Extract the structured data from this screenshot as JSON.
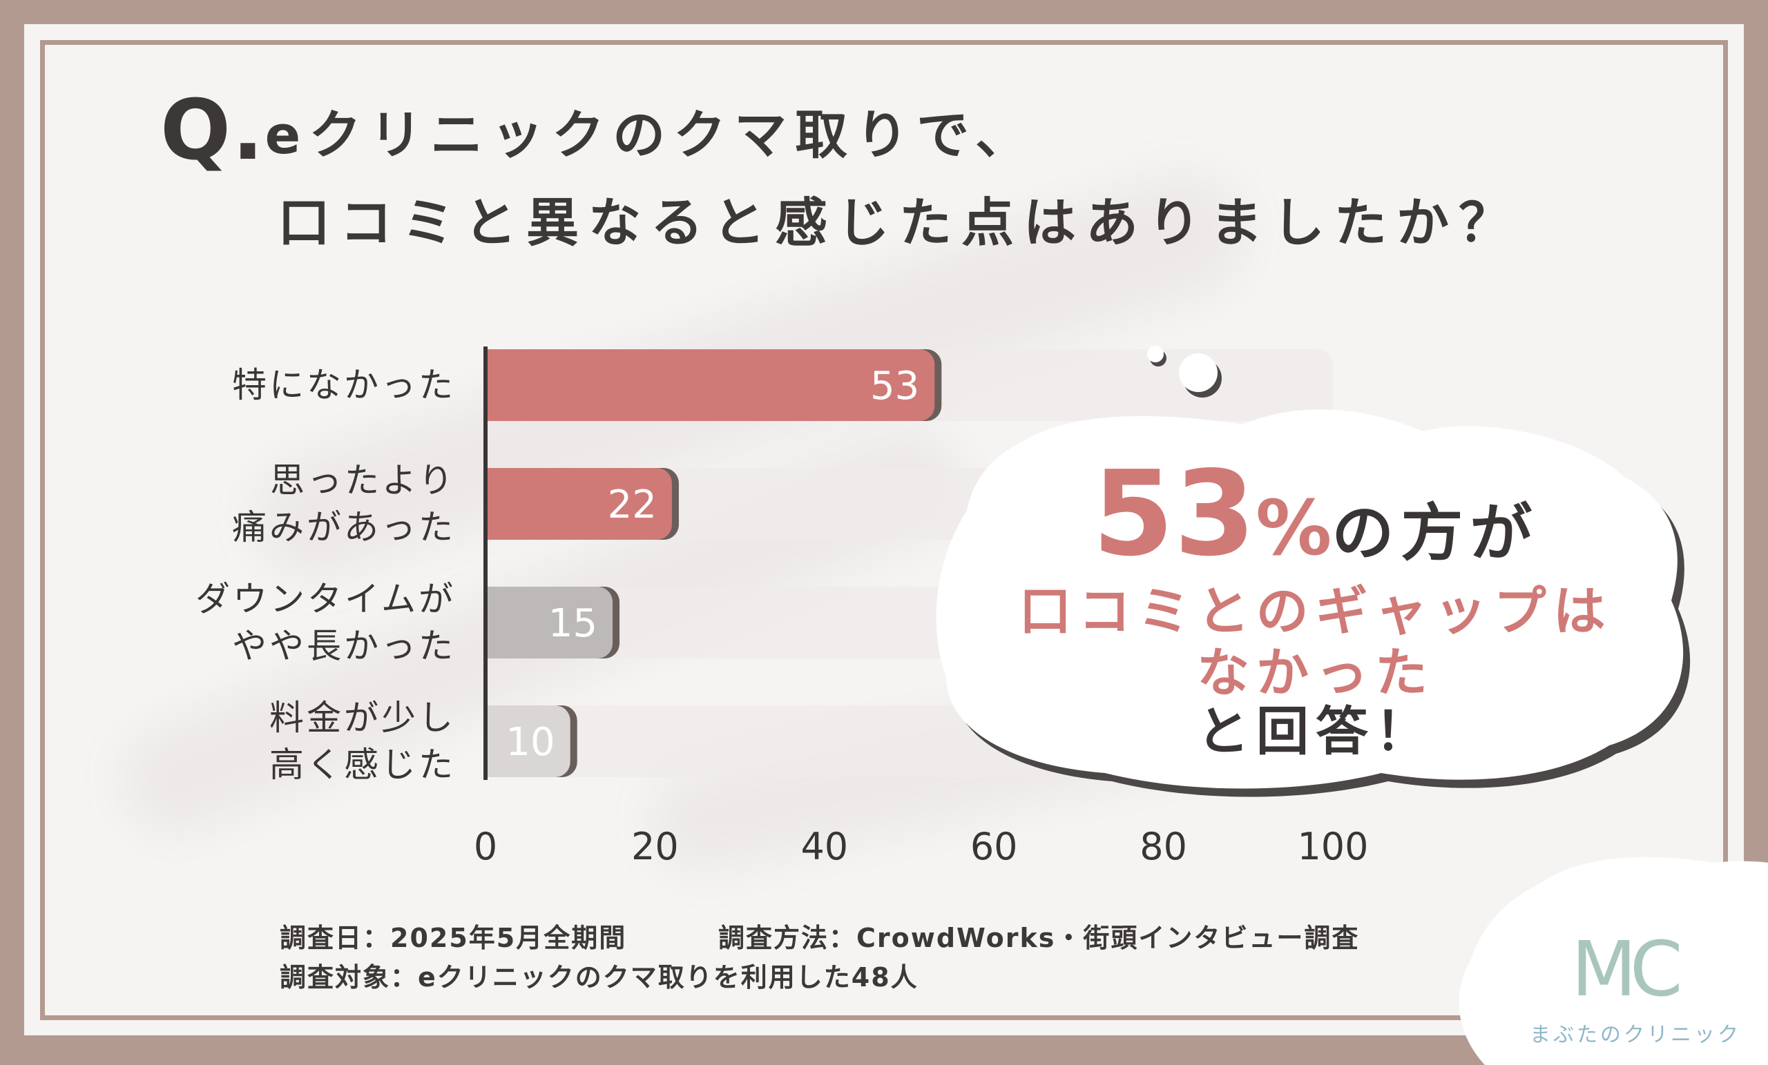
{
  "title": {
    "q_mark": "Q.",
    "line1": "eクリニックのクマ取りで、",
    "line2": "口コミと異なると感じた点はありましたか？"
  },
  "chart_data": {
    "type": "bar",
    "orientation": "horizontal",
    "categories": [
      [
        "特になかった"
      ],
      [
        "思ったより",
        "痛みがあった"
      ],
      [
        "ダウンタイムが",
        "やや長かった"
      ],
      [
        "料金が少し",
        "高く感じた"
      ]
    ],
    "values": [
      53,
      22,
      15,
      10
    ],
    "xlim": [
      0,
      100
    ],
    "xticks": [
      "0",
      "20",
      "40",
      "60",
      "80",
      "100"
    ],
    "colors": [
      "#d07a77",
      "#d07a77",
      "#bdb9b8",
      "#d9d6d5"
    ],
    "track_color": "#efebea",
    "grid": false
  },
  "callout": {
    "percent_number": "53",
    "percent_sign": "%",
    "suffix": "の方が",
    "line2": "口コミとのギャップは",
    "line3": "なかった",
    "line4": "と回答！",
    "accent_color": "#d07a77"
  },
  "footer": {
    "line1_left": "調査日：2025年5月全期間",
    "line1_right": "調査方法：CrowdWorks・街頭インタビュー調査",
    "line2": "調査対象：eクリニックのクマ取りを利用した48人"
  },
  "logo": {
    "mark": "MC",
    "name": "まぶたのクリニック"
  }
}
